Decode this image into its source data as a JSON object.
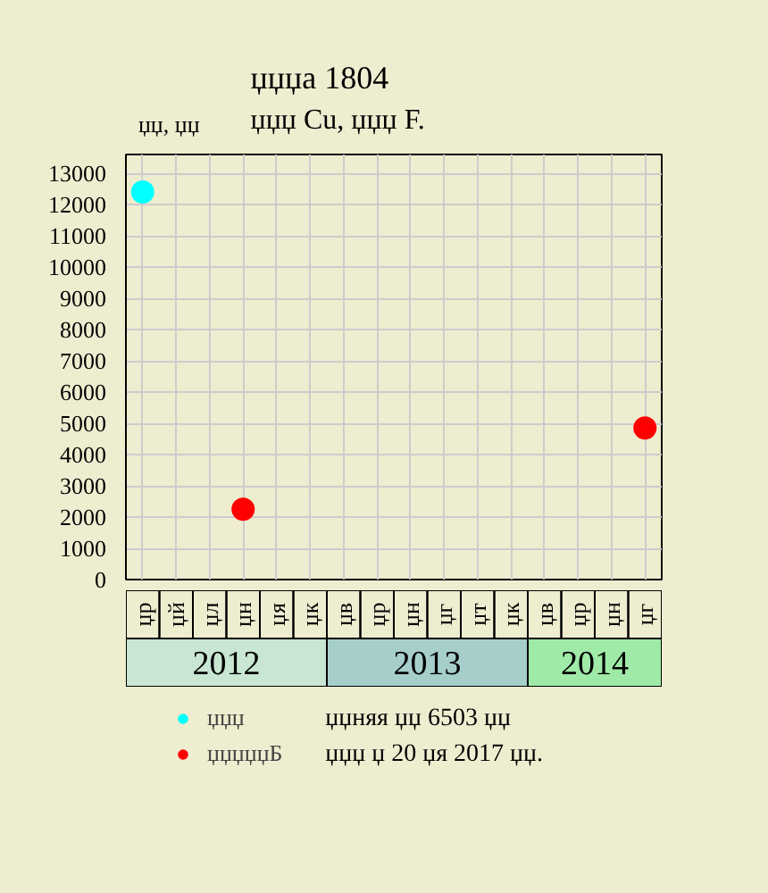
{
  "chart_data": {
    "type": "scatter",
    "title": "џџџа 1804",
    "subtitle": "џџџ Cu, џџџ F.",
    "ylabel": "џџ, џџ",
    "categories": [
      "џр",
      "џй",
      "џл",
      "џн",
      "џя",
      "џк",
      "џв",
      "џр",
      "џн",
      "џг",
      "џт",
      "џк",
      "џв",
      "џр",
      "џн",
      "џг"
    ],
    "series": [
      {
        "name": "џџџ",
        "color": "#00ffff",
        "values": [
          12400,
          null,
          null,
          null,
          null,
          null,
          null,
          null,
          null,
          null,
          null,
          null,
          null,
          null,
          null,
          null
        ]
      },
      {
        "name": "џџџџџБ",
        "color": "#ff0000",
        "values": [
          null,
          null,
          null,
          2250,
          null,
          null,
          null,
          null,
          null,
          null,
          null,
          null,
          null,
          null,
          null,
          4850
        ]
      }
    ],
    "ylim": [
      0,
      13600
    ],
    "yticks": [
      0,
      1000,
      2000,
      3000,
      4000,
      5000,
      6000,
      7000,
      8000,
      9000,
      10000,
      11000,
      12000,
      13000
    ],
    "grid": true,
    "legend": "bottom",
    "marker": "circle",
    "annotations": [
      "2012",
      "2013",
      "2014",
      "џџняя џџ 6503 џџ",
      "џџџ џ 20 џя 2017 џџ."
    ]
  }
}
